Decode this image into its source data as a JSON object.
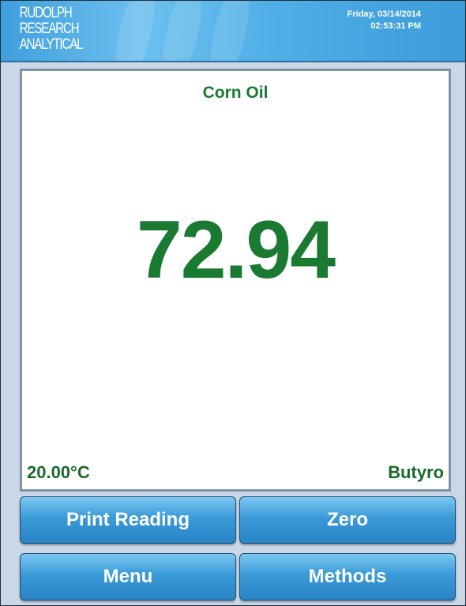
{
  "header": {
    "logo": [
      "RUDOLPH",
      "RESEARCH",
      "ANALYTICAL"
    ],
    "date": "Friday, 03/14/2014",
    "time": "02:53:31 PM"
  },
  "reading": {
    "method": "Corn Oil",
    "value": "72.94",
    "temperature": "20.00°C",
    "scale": "Butyro"
  },
  "buttons": [
    "Print Reading",
    "Zero",
    "Menu",
    "Methods"
  ]
}
